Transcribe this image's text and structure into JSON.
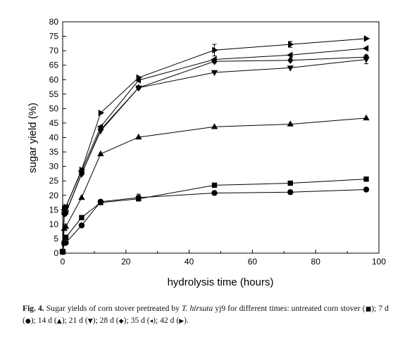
{
  "chart_data": {
    "type": "line",
    "xlabel": "hydrolysis time (hours)",
    "ylabel": "sugar yield (%)",
    "xlim": [
      0,
      100
    ],
    "ylim": [
      0,
      80
    ],
    "xticks": [
      0,
      20,
      40,
      60,
      80,
      100
    ],
    "yticks": [
      0,
      5,
      10,
      15,
      20,
      25,
      30,
      35,
      40,
      45,
      50,
      55,
      60,
      65,
      70,
      75,
      80
    ],
    "grid": false,
    "x": [
      0,
      0.5,
      1,
      6,
      12,
      24,
      48,
      72,
      96
    ],
    "series": [
      {
        "name": "untreated corn stover",
        "marker": "square",
        "values": [
          0.5,
          3.5,
          5.5,
          12.3,
          17.5,
          18.8,
          23.5,
          24.2,
          25.6
        ]
      },
      {
        "name": "7 d",
        "marker": "circle",
        "values": [
          0.5,
          3.5,
          3.6,
          9.6,
          17.8,
          19.2,
          20.8,
          21.1,
          22
        ]
      },
      {
        "name": "14 d",
        "marker": "triangle-up",
        "values": [
          0.5,
          8.5,
          9.2,
          19.2,
          34.3,
          40.1,
          43.7,
          44.6,
          46.7
        ]
      },
      {
        "name": "21 d",
        "marker": "triangle-down",
        "values": [
          0.5,
          13.5,
          14,
          27.5,
          42.3,
          57.2,
          62.5,
          64.1,
          67
        ]
      },
      {
        "name": "28 d",
        "marker": "diamond",
        "values": [
          0.5,
          13.5,
          13.8,
          27.4,
          42.7,
          57.2,
          66.3,
          66.7,
          67.8
        ]
      },
      {
        "name": "35 d",
        "marker": "triangle-left",
        "values": [
          0.5,
          15,
          16,
          28.5,
          43.7,
          59.8,
          67,
          68.5,
          70.8
        ]
      },
      {
        "name": "42 d",
        "marker": "triangle-right",
        "values": [
          0.5,
          15.5,
          16,
          28.8,
          48.5,
          60.7,
          70.2,
          72.2,
          74.2
        ]
      }
    ],
    "error_bars": [
      {
        "series": "7 d",
        "x": 24,
        "value": 1.2
      },
      {
        "series": "42 d",
        "x": 48,
        "value": 2
      },
      {
        "series": "42 d",
        "x": 72,
        "value": 1
      },
      {
        "series": "21 d",
        "x": 96,
        "value": 1.5
      }
    ]
  },
  "caption": {
    "label": "Fig. 4.",
    "text_1": " Sugar yields of corn stover pretreated by ",
    "organism": "T. hirsuta",
    "text_2": " yj9 for different times: untreated corn stover (",
    "sym_1": "■",
    "text_3": "); 7 d (",
    "sym_2": "●",
    "text_4": "); 14 d (",
    "sym_3": "▲",
    "text_5": "); 21 d (",
    "sym_4": "▼",
    "text_6": "); 28 d (",
    "sym_5": "◆",
    "text_7": "); 35 d (",
    "sym_6": "◂",
    "text_8": "); 42 d (",
    "sym_7": "▶",
    "text_9": ")."
  }
}
